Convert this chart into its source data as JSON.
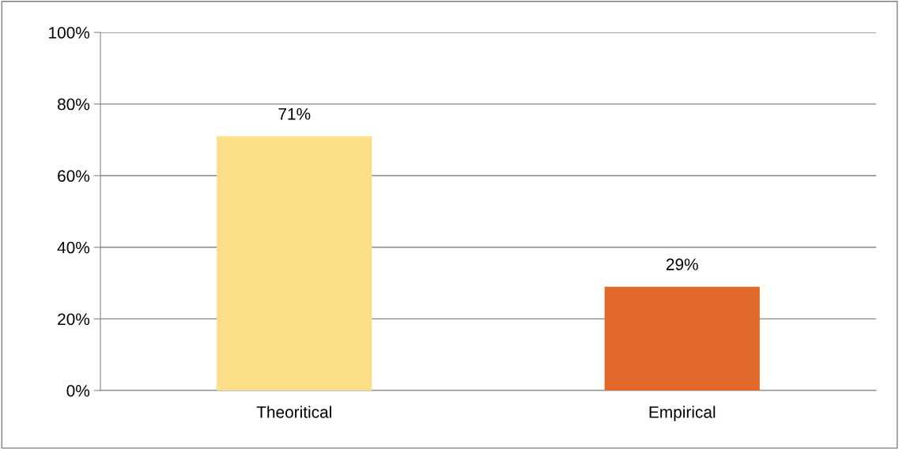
{
  "chart_data": {
    "type": "bar",
    "categories": [
      "Theoritical",
      "Empirical"
    ],
    "values": [
      71,
      29
    ],
    "colors": [
      "#fcdf88",
      "#e06828"
    ],
    "value_labels": [
      "71%",
      "29%"
    ],
    "ylim": [
      0,
      100
    ],
    "yticks": [
      {
        "value": 0,
        "label": "0%"
      },
      {
        "value": 20,
        "label": "20%"
      },
      {
        "value": 40,
        "label": "40%"
      },
      {
        "value": 60,
        "label": "60%"
      },
      {
        "value": 80,
        "label": "80%"
      },
      {
        "value": 100,
        "label": "100%"
      }
    ],
    "grid": "y",
    "legend": false
  }
}
